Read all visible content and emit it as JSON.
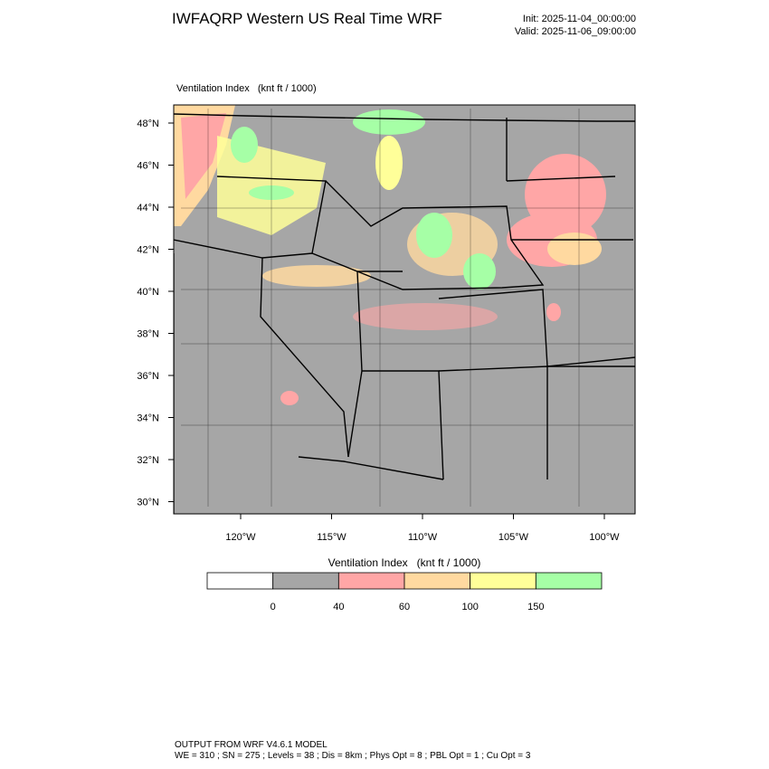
{
  "header": {
    "title": "IWFAQRP Western US Real Time WRF",
    "init": "Init: 2025-11-04_00:00:00",
    "valid": "Valid: 2025-11-06_09:00:00"
  },
  "map": {
    "subtitle": "Ventilation Index   (knt ft / 1000)",
    "lat_labels": [
      "48°N",
      "46°N",
      "44°N",
      "42°N",
      "40°N",
      "38°N",
      "36°N",
      "34°N",
      "32°N",
      "30°N"
    ],
    "lon_labels": [
      "120°W",
      "115°W",
      "110°W",
      "105°W",
      "100°W"
    ]
  },
  "colorbar": {
    "title": "Ventilation Index   (knt ft / 1000)",
    "colors": [
      "#ffffff",
      "#a6a6a6",
      "#ffa6a6",
      "#ffd9a0",
      "#ffff99",
      "#a6ffa6"
    ],
    "labels": [
      "0",
      "40",
      "60",
      "100",
      "150"
    ]
  },
  "footer": {
    "line1": "OUTPUT FROM WRF V4.6.1 MODEL",
    "line2": "WE = 310 ; SN = 275 ; Levels = 38 ; Dis = 8km ; Phys Opt = 8 ; PBL Opt = 1 ; Cu Opt = 3"
  }
}
